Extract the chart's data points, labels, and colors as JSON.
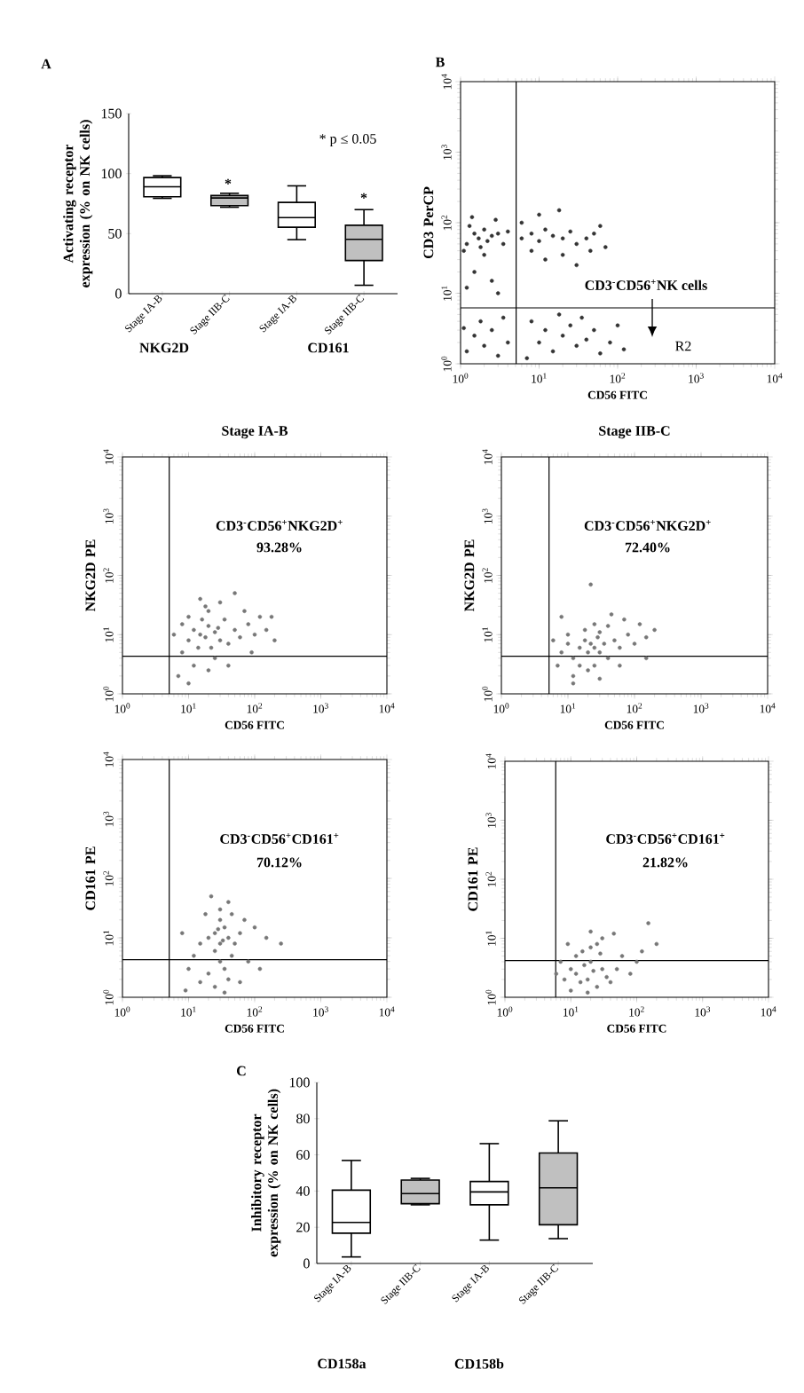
{
  "chart_data": [
    {
      "type": "box",
      "ylabel": "Activating receptor expression (% on NK cells)",
      "categories": [
        "Stage IA-B",
        "Stage IIB-C",
        "Stage IA-B",
        "Stage IIB-C"
      ],
      "boxes": [
        {
          "low": 79.4,
          "q1": 80.7,
          "median": 89,
          "q3": 96.7,
          "high": 98.2
        },
        {
          "low": 72,
          "q1": 73.3,
          "median": 79.7,
          "q3": 81.7,
          "high": 83.6
        },
        {
          "low": 45,
          "q1": 55.3,
          "median": 63.4,
          "q3": 76,
          "high": 89.8
        },
        {
          "low": 7,
          "q1": 27.6,
          "median": 45.2,
          "q3": 57,
          "high": 70
        }
      ],
      "colors": [
        "#ffffff",
        "#c0c0c0",
        "#ffffff",
        "#c0c0c0"
      ],
      "ylim": [
        0,
        150
      ],
      "yticks": [
        0,
        50,
        100,
        150
      ],
      "annotations": [
        "A",
        "* p ≤ 0.05",
        "*",
        "*",
        "NKG2D",
        "CD161"
      ]
    },
    {
      "type": "scatter",
      "xlabel": "CD56 FITC",
      "ylabel": "CD3 PerCP",
      "log": "xy",
      "color": "#333333",
      "x": [
        1.2,
        1.5,
        1.7,
        2,
        2.2,
        1.3,
        1.8,
        2.5,
        3,
        1.1,
        2,
        3.5,
        4,
        1.4,
        2.8,
        6,
        8,
        10,
        12,
        15,
        20,
        25,
        30,
        40,
        50,
        60,
        70,
        8,
        12,
        20,
        30,
        1.5,
        2.5,
        1.2,
        3,
        6,
        10,
        18,
        45,
        1.2,
        1.5,
        2,
        2.5,
        3,
        1.8,
        4,
        1.1,
        3.5,
        10,
        12,
        15,
        20,
        25,
        30,
        40,
        50,
        60,
        80,
        100,
        120,
        8,
        18,
        35,
        7
      ],
      "values": [
        50,
        70,
        60,
        80,
        55,
        90,
        45,
        65,
        70,
        40,
        35,
        50,
        75,
        120,
        110,
        60,
        70,
        55,
        80,
        65,
        60,
        75,
        50,
        60,
        70,
        90,
        45,
        40,
        30,
        35,
        25,
        20,
        15,
        12,
        10,
        100,
        130,
        150,
        40,
        1.5,
        2.5,
        1.8,
        3,
        1.3,
        4,
        2,
        3.2,
        4.5,
        2,
        3,
        1.5,
        2.5,
        3.5,
        1.8,
        2.2,
        3,
        1.4,
        2,
        3.5,
        1.6,
        4,
        5,
        4.5,
        1.2
      ],
      "xlim": [
        1,
        10000
      ],
      "ylim": [
        1,
        10000
      ],
      "xticks": [
        {
          "value": 1,
          "label": "10$^{0}$"
        },
        {
          "value": 10,
          "label": "10$^{1}$"
        },
        {
          "value": 100,
          "label": "10$^{2}$"
        },
        {
          "value": 1000,
          "label": "10$^{3}$"
        },
        {
          "value": 10000,
          "label": "10$^{4}$"
        }
      ],
      "yticks": [
        {
          "value": 1,
          "label": "10$^{0}$"
        },
        {
          "value": 10,
          "label": "10$^{1}$"
        },
        {
          "value": 100,
          "label": "10$^{2}$"
        },
        {
          "value": 1000,
          "label": "10$^{3}$"
        },
        {
          "value": 10000,
          "label": "10$^{4}$"
        }
      ],
      "ref_lines": [
        {
          "axis": "x",
          "value": 5.1
        },
        {
          "axis": "y",
          "value": 6.2
        }
      ],
      "annotations": [
        "B",
        "CD3$^{-}$CD56$^{+}$NK cells",
        "R2"
      ]
    },
    {
      "type": "scatter",
      "title": "Stage IA-B",
      "xlabel": "CD56 FITC",
      "ylabel": "NKG2D PE",
      "log": "xy",
      "color": "#777777",
      "x": [
        6,
        8,
        10,
        12,
        15,
        18,
        20,
        25,
        30,
        14,
        10,
        20,
        35,
        40,
        50,
        60,
        80,
        100,
        150,
        200,
        120,
        70,
        30,
        15,
        8,
        12,
        20,
        25,
        40,
        7,
        10,
        18,
        90,
        180,
        50,
        22,
        16,
        28
      ],
      "values": [
        10,
        15,
        8,
        12,
        10,
        9,
        14,
        11,
        8,
        6,
        20,
        25,
        18,
        7,
        12,
        9,
        15,
        10,
        12,
        8,
        20,
        25,
        35,
        40,
        5,
        3,
        2.5,
        4,
        3,
        2,
        1.5,
        30,
        5,
        20,
        50,
        6,
        18,
        13
      ],
      "xlim": [
        1,
        10000
      ],
      "ylim": [
        1,
        10000
      ],
      "xticks": [
        {
          "value": 1,
          "label": "10$^{0}$"
        },
        {
          "value": 10,
          "label": "10$^{1}$"
        },
        {
          "value": 100,
          "label": "10$^{2}$"
        },
        {
          "value": 1000,
          "label": "10$^{3}$"
        },
        {
          "value": 10000,
          "label": "10$^{4}$"
        }
      ],
      "yticks": [
        {
          "value": 1,
          "label": "10$^{0}$"
        },
        {
          "value": 10,
          "label": "10$^{1}$"
        },
        {
          "value": 100,
          "label": "10$^{2}$"
        },
        {
          "value": 1000,
          "label": "10$^{3}$"
        },
        {
          "value": 10000,
          "label": "10$^{4}$"
        }
      ],
      "ref_lines": [
        {
          "axis": "x",
          "value": 5.1
        },
        {
          "axis": "y",
          "value": 4.3
        }
      ],
      "annotations": [
        "CD3$^{-}$CD56$^{+}$NKG2D$^{+}$",
        "93.28%"
      ]
    },
    {
      "type": "scatter",
      "title": "Stage IIB-C",
      "xlabel": "CD56 FITC",
      "ylabel": "NKG2D PE",
      "log": "xy",
      "color": "#777777",
      "x": [
        8,
        10,
        12,
        15,
        18,
        20,
        22,
        25,
        28,
        30,
        35,
        40,
        15,
        20,
        25,
        12,
        10,
        18,
        25,
        30,
        50,
        60,
        80,
        100,
        150,
        200,
        150,
        60,
        40,
        8,
        12,
        30,
        7,
        45,
        120,
        70,
        22,
        6
      ],
      "values": [
        5,
        7,
        4,
        6,
        8,
        5,
        7,
        6,
        9,
        5,
        7,
        4,
        3,
        2.5,
        3,
        2,
        10,
        12,
        15,
        11,
        8,
        6,
        10,
        7,
        9,
        12,
        4,
        3,
        14,
        20,
        1.5,
        1.8,
        3,
        22,
        15,
        18,
        70,
        8
      ],
      "xlim": [
        1,
        10000
      ],
      "ylim": [
        1,
        10000
      ],
      "xticks": [
        {
          "value": 1,
          "label": "10$^{0}$"
        },
        {
          "value": 10,
          "label": "10$^{1}$"
        },
        {
          "value": 100,
          "label": "10$^{2}$"
        },
        {
          "value": 1000,
          "label": "10$^{3}$"
        },
        {
          "value": 10000,
          "label": "10$^{4}$"
        }
      ],
      "yticks": [
        {
          "value": 1,
          "label": "10$^{0}$"
        },
        {
          "value": 10,
          "label": "10$^{1}$"
        },
        {
          "value": 100,
          "label": "10$^{2}$"
        },
        {
          "value": 1000,
          "label": "10$^{3}$"
        },
        {
          "value": 10000,
          "label": "10$^{4}$"
        }
      ],
      "ref_lines": [
        {
          "axis": "x",
          "value": 5.2
        },
        {
          "axis": "y",
          "value": 4.3
        }
      ],
      "annotations": [
        "CD3$^{-}$CD56$^{+}$NKG2D$^{+}$",
        "72.40%"
      ]
    },
    {
      "type": "scatter",
      "xlabel": "CD56 FITC",
      "ylabel": "CD161 PE",
      "log": "xy",
      "color": "#777777",
      "x": [
        20,
        25,
        30,
        35,
        30,
        40,
        25,
        30,
        35,
        20,
        40,
        25,
        45,
        50,
        60,
        15,
        12,
        10,
        8,
        18,
        30,
        40,
        22,
        70,
        100,
        150,
        250,
        80,
        120,
        60,
        9,
        15,
        35,
        28,
        33,
        45
      ],
      "values": [
        10,
        12,
        8,
        15,
        20,
        10,
        6,
        4,
        3,
        2.5,
        2,
        1.5,
        5,
        8,
        12,
        8,
        5,
        3,
        12,
        25,
        30,
        40,
        50,
        20,
        15,
        10,
        8,
        4,
        3,
        1.8,
        1.3,
        1.8,
        1.2,
        14,
        9,
        25
      ],
      "xlim": [
        1,
        10000
      ],
      "ylim": [
        1,
        10000
      ],
      "xticks": [
        {
          "value": 1,
          "label": "10$^{0}$"
        },
        {
          "value": 10,
          "label": "10$^{1}$"
        },
        {
          "value": 100,
          "label": "10$^{2}$"
        },
        {
          "value": 1000,
          "label": "10$^{3}$"
        },
        {
          "value": 10000,
          "label": "10$^{4}$"
        }
      ],
      "yticks": [
        {
          "value": 1,
          "label": "10$^{0}$"
        },
        {
          "value": 10,
          "label": "10$^{1}$"
        },
        {
          "value": 100,
          "label": "10$^{2}$"
        },
        {
          "value": 1000,
          "label": "10$^{3}$"
        },
        {
          "value": 10000,
          "label": "10$^{4}$"
        }
      ],
      "ref_lines": [
        {
          "axis": "x",
          "value": 5.1
        },
        {
          "axis": "y",
          "value": 4.3
        }
      ],
      "annotations": [
        "CD3$^{-}$CD56$^{+}$CD161$^{+}$",
        "70.12%"
      ]
    },
    {
      "type": "scatter",
      "xlabel": "CD56 FITC",
      "ylabel": "CD161 PE",
      "log": "xy",
      "color": "#777777",
      "x": [
        8,
        10,
        12,
        14,
        16,
        18,
        20,
        22,
        25,
        30,
        35,
        12,
        15,
        20,
        10,
        7,
        6,
        40,
        50,
        60,
        80,
        100,
        120,
        200,
        150,
        30,
        20,
        25,
        45,
        18,
        28,
        9
      ],
      "values": [
        2,
        3,
        2.5,
        1.8,
        3.5,
        2,
        4,
        2.8,
        1.5,
        3,
        2.2,
        5,
        6,
        7,
        1.3,
        4,
        2.5,
        1.8,
        3,
        5,
        2.5,
        4,
        6,
        8,
        18,
        10,
        13,
        8,
        12,
        1.2,
        5.5,
        8
      ],
      "xlim": [
        1,
        10000
      ],
      "ylim": [
        1,
        10000
      ],
      "xticks": [
        {
          "value": 1,
          "label": "10$^{0}$"
        },
        {
          "value": 10,
          "label": "10$^{1}$"
        },
        {
          "value": 100,
          "label": "10$^{2}$"
        },
        {
          "value": 1000,
          "label": "10$^{3}$"
        },
        {
          "value": 10000,
          "label": "10$^{4}$"
        }
      ],
      "yticks": [
        {
          "value": 1,
          "label": "10$^{0}$"
        },
        {
          "value": 10,
          "label": "10$^{1}$"
        },
        {
          "value": 100,
          "label": "10$^{2}$"
        },
        {
          "value": 1000,
          "label": "10$^{3}$"
        },
        {
          "value": 10000,
          "label": "10$^{4}$"
        }
      ],
      "ref_lines": [
        {
          "axis": "x",
          "value": 5.9
        },
        {
          "axis": "y",
          "value": 4.2
        }
      ],
      "annotations": [
        "CD3$^{-}$CD56$^{+}$CD161$^{+}$",
        "21.82%"
      ]
    },
    {
      "type": "box",
      "ylabel": "Inhibitory receptor expression (% on NK cells)",
      "categories": [
        "Stage IA-B",
        "Stage IIB-C",
        "Stage IA-B",
        "Stage IIB-C"
      ],
      "boxes": [
        {
          "low": 3.6,
          "q1": 16.7,
          "median": 22.7,
          "q3": 40.5,
          "high": 56.9
        },
        {
          "low": 32.4,
          "q1": 33,
          "median": 38.6,
          "q3": 46.1,
          "high": 47
        },
        {
          "low": 12.9,
          "q1": 32.4,
          "median": 39.5,
          "q3": 45.3,
          "high": 66.2
        },
        {
          "low": 13.7,
          "q1": 21.4,
          "median": 41.8,
          "q3": 61,
          "high": 78.8
        }
      ],
      "colors": [
        "#ffffff",
        "#c0c0c0",
        "#ffffff",
        "#c0c0c0"
      ],
      "ylim": [
        0,
        100
      ],
      "yticks": [
        0,
        20,
        40,
        60,
        80,
        100
      ],
      "annotations": [
        "C",
        "CD158a",
        "CD158b"
      ]
    }
  ]
}
